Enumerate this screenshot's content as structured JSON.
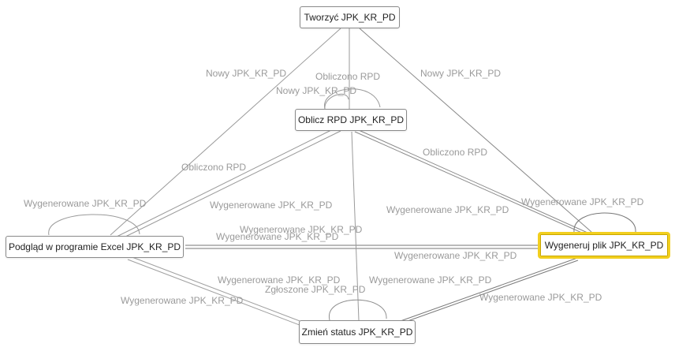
{
  "nodes": {
    "create": "Tworzyć JPK_KR_PD",
    "calc": "Oblicz RPD JPK_KR_PD",
    "preview": "Podgląd w programie Excel JPK_KR_PD",
    "generate": "Wygeneruj plik JPK_KR_PD",
    "status": "Zmień status JPK_KR_PD"
  },
  "active_node": "generate",
  "highlight_color": "#f2cf1f",
  "edge_labels": {
    "create_to_preview": "Nowy JPK_KR_PD",
    "create_to_generate": "Nowy JPK_KR_PD",
    "calc_loop": "Obliczono RPD",
    "create_to_calc": "Nowy JPK_KR_PD",
    "calc_to_preview": "Obliczono RPD",
    "calc_to_generate": "Obliczono RPD",
    "preview_loop": "Wygenerowane JPK_KR_PD",
    "preview_to_calc": "Wygenerowane JPK_KR_PD",
    "preview_generate_a": "Wygenerowane JPK_KR_PD",
    "preview_generate_b": "Wygenerowane JPK_KR_PD",
    "generate_loop": "Wygenerowane JPK_KR_PD",
    "generate_to_calc": "Wygenerowane JPK_KR_PD",
    "generate_preview_c": "Wygenerowane JPK_KR_PD",
    "status_to_preview": "Wygenerowane JPK_KR_PD",
    "preview_to_status": "Wygenerowane JPK_KR_PD",
    "status_loop": "Zgłoszone JPK_KR_PD",
    "status_to_generate": "Wygenerowane JPK_KR_PD",
    "generate_to_status": "Wygenerowane JPK_KR_PD"
  }
}
